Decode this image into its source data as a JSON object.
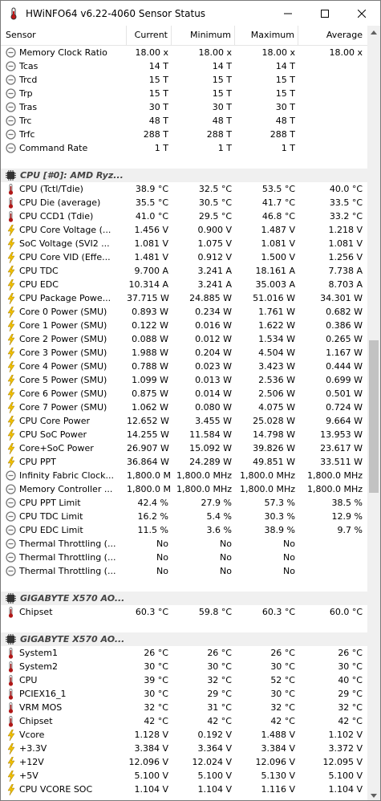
{
  "window": {
    "title": "HWiNFO64 v6.22-4060 Sensor Status",
    "icon": "thermometer-app-icon",
    "buttons": [
      "minimize-icon",
      "maximize-icon",
      "close-icon"
    ]
  },
  "columns": [
    "Sensor",
    "Current",
    "Minimum",
    "Maximum",
    "Average"
  ],
  "colors": {
    "voltage": "#f0c000",
    "temp": "#b01818",
    "clock": "#777777",
    "group_bg": "#f0f0f0",
    "thumb": "#c2c2c2"
  },
  "rows": [
    {
      "type": "sensor",
      "icon": "clock",
      "name": "Memory Clock Ratio",
      "cur": "18.00 x",
      "min": "18.00 x",
      "max": "18.00 x",
      "avg": "18.00 x"
    },
    {
      "type": "sensor",
      "icon": "clock",
      "name": "Tcas",
      "cur": "14 T",
      "min": "14 T",
      "max": "14 T",
      "avg": ""
    },
    {
      "type": "sensor",
      "icon": "clock",
      "name": "Trcd",
      "cur": "15 T",
      "min": "15 T",
      "max": "15 T",
      "avg": ""
    },
    {
      "type": "sensor",
      "icon": "clock",
      "name": "Trp",
      "cur": "15 T",
      "min": "15 T",
      "max": "15 T",
      "avg": ""
    },
    {
      "type": "sensor",
      "icon": "clock",
      "name": "Tras",
      "cur": "30 T",
      "min": "30 T",
      "max": "30 T",
      "avg": ""
    },
    {
      "type": "sensor",
      "icon": "clock",
      "name": "Trc",
      "cur": "48 T",
      "min": "48 T",
      "max": "48 T",
      "avg": ""
    },
    {
      "type": "sensor",
      "icon": "clock",
      "name": "Trfc",
      "cur": "288 T",
      "min": "288 T",
      "max": "288 T",
      "avg": ""
    },
    {
      "type": "sensor",
      "icon": "clock",
      "name": "Command Rate",
      "cur": "1 T",
      "min": "1 T",
      "max": "1 T",
      "avg": ""
    },
    {
      "type": "spacer"
    },
    {
      "type": "group",
      "icon": "chip",
      "name": "CPU [#0]: AMD Ryz..."
    },
    {
      "type": "sensor",
      "icon": "temp",
      "name": "CPU (Tctl/Tdie)",
      "cur": "38.9 °C",
      "min": "32.5 °C",
      "max": "53.5 °C",
      "avg": "40.0 °C"
    },
    {
      "type": "sensor",
      "icon": "temp",
      "name": "CPU Die (average)",
      "cur": "35.5 °C",
      "min": "30.5 °C",
      "max": "41.7 °C",
      "avg": "33.5 °C"
    },
    {
      "type": "sensor",
      "icon": "temp",
      "name": "CPU CCD1 (Tdie)",
      "cur": "41.0 °C",
      "min": "29.5 °C",
      "max": "46.8 °C",
      "avg": "33.2 °C"
    },
    {
      "type": "sensor",
      "icon": "volt",
      "name": "CPU Core Voltage (...",
      "cur": "1.456 V",
      "min": "0.900 V",
      "max": "1.487 V",
      "avg": "1.218 V"
    },
    {
      "type": "sensor",
      "icon": "volt",
      "name": "SoC Voltage (SVI2 ...",
      "cur": "1.081 V",
      "min": "1.075 V",
      "max": "1.081 V",
      "avg": "1.081 V"
    },
    {
      "type": "sensor",
      "icon": "volt",
      "name": "CPU Core VID (Effe...",
      "cur": "1.481 V",
      "min": "0.912 V",
      "max": "1.500 V",
      "avg": "1.256 V"
    },
    {
      "type": "sensor",
      "icon": "volt",
      "name": "CPU TDC",
      "cur": "9.700 A",
      "min": "3.241 A",
      "max": "18.161 A",
      "avg": "7.738 A"
    },
    {
      "type": "sensor",
      "icon": "volt",
      "name": "CPU EDC",
      "cur": "10.314 A",
      "min": "3.241 A",
      "max": "35.003 A",
      "avg": "8.703 A"
    },
    {
      "type": "sensor",
      "icon": "volt",
      "name": "CPU Package Powe...",
      "cur": "37.715 W",
      "min": "24.885 W",
      "max": "51.016 W",
      "avg": "34.301 W"
    },
    {
      "type": "sensor",
      "icon": "volt",
      "name": "Core 0 Power (SMU)",
      "cur": "0.893 W",
      "min": "0.234 W",
      "max": "1.761 W",
      "avg": "0.682 W"
    },
    {
      "type": "sensor",
      "icon": "volt",
      "name": "Core 1 Power (SMU)",
      "cur": "0.122 W",
      "min": "0.016 W",
      "max": "1.622 W",
      "avg": "0.386 W"
    },
    {
      "type": "sensor",
      "icon": "volt",
      "name": "Core 2 Power (SMU)",
      "cur": "0.088 W",
      "min": "0.012 W",
      "max": "1.534 W",
      "avg": "0.265 W"
    },
    {
      "type": "sensor",
      "icon": "volt",
      "name": "Core 3 Power (SMU)",
      "cur": "1.988 W",
      "min": "0.204 W",
      "max": "4.504 W",
      "avg": "1.167 W"
    },
    {
      "type": "sensor",
      "icon": "volt",
      "name": "Core 4 Power (SMU)",
      "cur": "0.788 W",
      "min": "0.023 W",
      "max": "3.423 W",
      "avg": "0.444 W"
    },
    {
      "type": "sensor",
      "icon": "volt",
      "name": "Core 5 Power (SMU)",
      "cur": "1.099 W",
      "min": "0.013 W",
      "max": "2.536 W",
      "avg": "0.699 W"
    },
    {
      "type": "sensor",
      "icon": "volt",
      "name": "Core 6 Power (SMU)",
      "cur": "0.875 W",
      "min": "0.014 W",
      "max": "2.506 W",
      "avg": "0.501 W"
    },
    {
      "type": "sensor",
      "icon": "volt",
      "name": "Core 7 Power (SMU)",
      "cur": "1.062 W",
      "min": "0.080 W",
      "max": "4.075 W",
      "avg": "0.724 W"
    },
    {
      "type": "sensor",
      "icon": "volt",
      "name": "CPU Core Power",
      "cur": "12.652 W",
      "min": "3.455 W",
      "max": "25.028 W",
      "avg": "9.664 W"
    },
    {
      "type": "sensor",
      "icon": "volt",
      "name": "CPU SoC Power",
      "cur": "14.255 W",
      "min": "11.584 W",
      "max": "14.798 W",
      "avg": "13.953 W"
    },
    {
      "type": "sensor",
      "icon": "volt",
      "name": "Core+SoC Power",
      "cur": "26.907 W",
      "min": "15.092 W",
      "max": "39.826 W",
      "avg": "23.617 W"
    },
    {
      "type": "sensor",
      "icon": "volt",
      "name": "CPU PPT",
      "cur": "36.864 W",
      "min": "24.289 W",
      "max": "49.851 W",
      "avg": "33.511 W"
    },
    {
      "type": "sensor",
      "icon": "clock",
      "name": "Infinity Fabric Clock...",
      "cur": "1,800.0 MHz",
      "min": "1,800.0 MHz",
      "max": "1,800.0 MHz",
      "avg": "1,800.0 MHz"
    },
    {
      "type": "sensor",
      "icon": "clock",
      "name": "Memory Controller ...",
      "cur": "1,800.0 MHz",
      "min": "1,800.0 MHz",
      "max": "1,800.0 MHz",
      "avg": "1,800.0 MHz"
    },
    {
      "type": "sensor",
      "icon": "clock",
      "name": "CPU PPT Limit",
      "cur": "42.4 %",
      "min": "27.9 %",
      "max": "57.3 %",
      "avg": "38.5 %"
    },
    {
      "type": "sensor",
      "icon": "clock",
      "name": "CPU TDC Limit",
      "cur": "16.2 %",
      "min": "5.4 %",
      "max": "30.3 %",
      "avg": "12.9 %"
    },
    {
      "type": "sensor",
      "icon": "clock",
      "name": "CPU EDC Limit",
      "cur": "11.5 %",
      "min": "3.6 %",
      "max": "38.9 %",
      "avg": "9.7 %"
    },
    {
      "type": "sensor",
      "icon": "clock",
      "name": "Thermal Throttling (...",
      "cur": "No",
      "min": "No",
      "max": "No",
      "avg": ""
    },
    {
      "type": "sensor",
      "icon": "clock",
      "name": "Thermal Throttling (...",
      "cur": "No",
      "min": "No",
      "max": "No",
      "avg": ""
    },
    {
      "type": "sensor",
      "icon": "clock",
      "name": "Thermal Throttling (...",
      "cur": "No",
      "min": "No",
      "max": "No",
      "avg": ""
    },
    {
      "type": "spacer"
    },
    {
      "type": "group",
      "icon": "chip",
      "name": "GIGABYTE X570 AO..."
    },
    {
      "type": "sensor",
      "icon": "temp",
      "name": "Chipset",
      "cur": "60.3 °C",
      "min": "59.8 °C",
      "max": "60.3 °C",
      "avg": "60.0 °C"
    },
    {
      "type": "spacer"
    },
    {
      "type": "group",
      "icon": "chip",
      "name": "GIGABYTE X570 AO..."
    },
    {
      "type": "sensor",
      "icon": "temp",
      "name": "System1",
      "cur": "26 °C",
      "min": "26 °C",
      "max": "26 °C",
      "avg": "26 °C"
    },
    {
      "type": "sensor",
      "icon": "temp",
      "name": "System2",
      "cur": "30 °C",
      "min": "30 °C",
      "max": "30 °C",
      "avg": "30 °C"
    },
    {
      "type": "sensor",
      "icon": "temp",
      "name": "CPU",
      "cur": "39 °C",
      "min": "32 °C",
      "max": "52 °C",
      "avg": "40 °C"
    },
    {
      "type": "sensor",
      "icon": "temp",
      "name": "PCIEX16_1",
      "cur": "30 °C",
      "min": "29 °C",
      "max": "30 °C",
      "avg": "29 °C"
    },
    {
      "type": "sensor",
      "icon": "temp",
      "name": "VRM MOS",
      "cur": "32 °C",
      "min": "31 °C",
      "max": "32 °C",
      "avg": "32 °C"
    },
    {
      "type": "sensor",
      "icon": "temp",
      "name": "Chipset",
      "cur": "42 °C",
      "min": "42 °C",
      "max": "42 °C",
      "avg": "42 °C"
    },
    {
      "type": "sensor",
      "icon": "volt",
      "name": "Vcore",
      "cur": "1.128 V",
      "min": "0.192 V",
      "max": "1.488 V",
      "avg": "1.102 V"
    },
    {
      "type": "sensor",
      "icon": "volt",
      "name": "+3.3V",
      "cur": "3.384 V",
      "min": "3.364 V",
      "max": "3.384 V",
      "avg": "3.372 V"
    },
    {
      "type": "sensor",
      "icon": "volt",
      "name": "+12V",
      "cur": "12.096 V",
      "min": "12.024 V",
      "max": "12.096 V",
      "avg": "12.095 V"
    },
    {
      "type": "sensor",
      "icon": "volt",
      "name": "+5V",
      "cur": "5.100 V",
      "min": "5.100 V",
      "max": "5.130 V",
      "avg": "5.100 V"
    },
    {
      "type": "sensor",
      "icon": "volt",
      "name": "CPU VCORE SOC",
      "cur": "1.104 V",
      "min": "1.104 V",
      "max": "1.116 V",
      "avg": "1.104 V"
    }
  ]
}
